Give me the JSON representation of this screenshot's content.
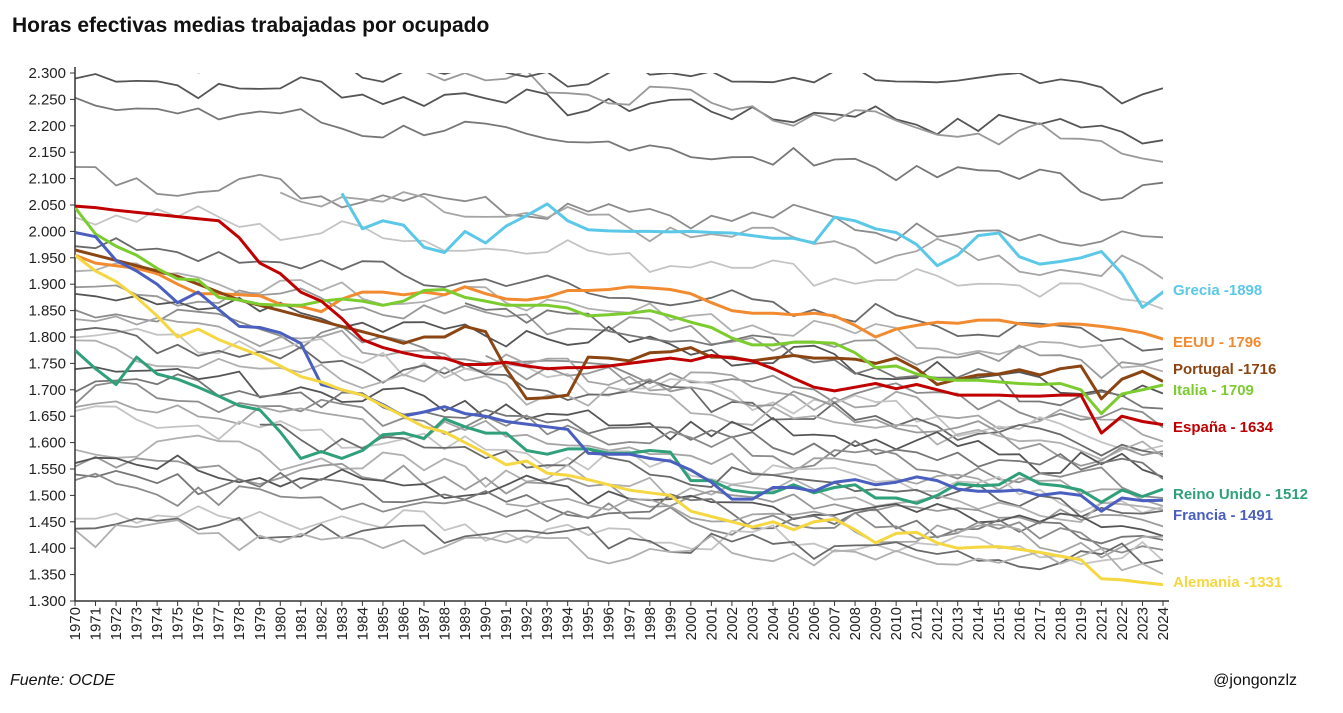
{
  "title": "Horas efectivas medias trabajadas por ocupado",
  "source": "Fuente: OCDE",
  "credit": "@jongonzlz",
  "chart_data": {
    "type": "line",
    "ylim": [
      1300,
      2300
    ],
    "yticks": [
      "1.300",
      "1.350",
      "1.400",
      "1.450",
      "1.500",
      "1.550",
      "1.600",
      "1.650",
      "1.700",
      "1.750",
      "1.800",
      "1.850",
      "1.900",
      "1.950",
      "2.000",
      "2.050",
      "2.100",
      "2.150",
      "2.200",
      "2.250",
      "2.300"
    ],
    "x": [
      "1970",
      "1971",
      "1972",
      "1973",
      "1974",
      "1975",
      "1976",
      "1977",
      "1978",
      "1979",
      "1980",
      "1981",
      "1982",
      "1983",
      "1984",
      "1985",
      "1986",
      "1987",
      "1988",
      "1989",
      "1990",
      "1991",
      "1992",
      "1993",
      "1994",
      "1995",
      "1996",
      "1997",
      "1998",
      "1999",
      "2000",
      "2001",
      "2002",
      "2003",
      "2004",
      "2005",
      "2006",
      "2007",
      "2008",
      "2009",
      "2010",
      "2011",
      "2012",
      "2013",
      "2014",
      "2015",
      "2016",
      "2017",
      "2018",
      "2019",
      "2021",
      "2022",
      "2023",
      "2024"
    ],
    "highlight": [
      {
        "label": "Grecia -1898",
        "color": "#5bc8e8",
        "start": 13,
        "values": [
          2072,
          2005,
          2020,
          2012,
          1970,
          1960,
          2000,
          1978,
          2010,
          2030,
          2052,
          2020,
          2003,
          2001,
          2000,
          2000,
          1999,
          2000,
          1998,
          1997,
          1992,
          1987,
          1987,
          1978,
          2027,
          2020,
          2005,
          1998,
          1975,
          1935,
          1955,
          1992,
          1997,
          1952,
          1938,
          1943,
          1950,
          1962,
          1920,
          1856,
          1885,
          1895,
          1898
        ]
      },
      {
        "label": "EEUU - 1796",
        "color": "#f28a30",
        "start": 0,
        "values": [
          1955,
          1940,
          1935,
          1930,
          1920,
          1900,
          1882,
          1882,
          1880,
          1878,
          1862,
          1858,
          1848,
          1872,
          1885,
          1885,
          1880,
          1885,
          1880,
          1895,
          1882,
          1872,
          1870,
          1876,
          1888,
          1888,
          1890,
          1895,
          1893,
          1890,
          1882,
          1865,
          1850,
          1845,
          1845,
          1842,
          1845,
          1840,
          1822,
          1800,
          1815,
          1822,
          1828,
          1826,
          1832,
          1832,
          1825,
          1820,
          1825,
          1824,
          1820,
          1815,
          1808,
          1796
        ]
      },
      {
        "label": "Portugal -1716",
        "color": "#8b4513",
        "start": 0,
        "values": [
          1965,
          1955,
          1945,
          1935,
          1925,
          1915,
          1900,
          1885,
          1870,
          1860,
          1850,
          1840,
          1830,
          1820,
          1810,
          1800,
          1788,
          1800,
          1800,
          1820,
          1810,
          1740,
          1683,
          1685,
          1690,
          1762,
          1760,
          1755,
          1770,
          1772,
          1780,
          1762,
          1762,
          1755,
          1760,
          1765,
          1760,
          1760,
          1758,
          1750,
          1760,
          1740,
          1710,
          1720,
          1728,
          1730,
          1738,
          1728,
          1740,
          1745,
          1683,
          1720,
          1735,
          1716
        ]
      },
      {
        "label": "Italia - 1709",
        "color": "#7ccc30",
        "start": 0,
        "values": [
          2045,
          1995,
          1972,
          1955,
          1930,
          1910,
          1908,
          1875,
          1870,
          1862,
          1860,
          1860,
          1868,
          1872,
          1868,
          1860,
          1868,
          1888,
          1890,
          1875,
          1868,
          1860,
          1860,
          1860,
          1855,
          1840,
          1842,
          1845,
          1850,
          1840,
          1828,
          1818,
          1798,
          1785,
          1785,
          1790,
          1790,
          1788,
          1770,
          1742,
          1745,
          1730,
          1720,
          1718,
          1718,
          1715,
          1712,
          1710,
          1712,
          1700,
          1655,
          1692,
          1700,
          1709
        ]
      },
      {
        "label": "España - 1634",
        "color": "#c00000",
        "start": 0,
        "values": [
          2048,
          2045,
          2040,
          2036,
          2032,
          2028,
          2024,
          2020,
          1988,
          1940,
          1920,
          1885,
          1868,
          1835,
          1795,
          1780,
          1770,
          1762,
          1760,
          1748,
          1748,
          1752,
          1745,
          1740,
          1742,
          1742,
          1745,
          1750,
          1755,
          1760,
          1755,
          1765,
          1760,
          1755,
          1740,
          1722,
          1705,
          1698,
          1705,
          1712,
          1702,
          1710,
          1700,
          1690,
          1690,
          1690,
          1688,
          1688,
          1690,
          1690,
          1618,
          1650,
          1640,
          1634
        ]
      },
      {
        "label": "Reino Unido - 1512",
        "color": "#2fa07a",
        "start": 0,
        "values": [
          1775,
          1740,
          1710,
          1762,
          1730,
          1720,
          1705,
          1688,
          1670,
          1662,
          1620,
          1570,
          1583,
          1570,
          1585,
          1615,
          1618,
          1608,
          1645,
          1630,
          1618,
          1618,
          1585,
          1578,
          1588,
          1588,
          1580,
          1580,
          1585,
          1582,
          1528,
          1528,
          1510,
          1505,
          1505,
          1520,
          1505,
          1515,
          1520,
          1495,
          1495,
          1485,
          1500,
          1522,
          1518,
          1520,
          1542,
          1522,
          1518,
          1510,
          1487,
          1510,
          1498,
          1512
        ]
      },
      {
        "label": "Francia - 1491",
        "color": "#4a5fbf",
        "start": 0,
        "values": [
          1998,
          1990,
          1945,
          1925,
          1900,
          1865,
          1885,
          1852,
          1820,
          1818,
          1808,
          1788,
          1710,
          1700,
          1690,
          1672,
          1650,
          1658,
          1668,
          1655,
          1650,
          1640,
          1635,
          1630,
          1625,
          1580,
          1578,
          1578,
          1570,
          1565,
          1548,
          1525,
          1493,
          1493,
          1515,
          1515,
          1508,
          1525,
          1530,
          1520,
          1525,
          1535,
          1528,
          1512,
          1508,
          1508,
          1510,
          1500,
          1505,
          1500,
          1470,
          1495,
          1490,
          1491
        ]
      },
      {
        "label": "Alemania -1331",
        "color": "#f5d742",
        "start": 0,
        "values": [
          1955,
          1925,
          1905,
          1875,
          1840,
          1800,
          1815,
          1795,
          1780,
          1765,
          1745,
          1725,
          1715,
          1700,
          1690,
          1670,
          1650,
          1630,
          1620,
          1600,
          1580,
          1558,
          1565,
          1542,
          1538,
          1530,
          1520,
          1510,
          1505,
          1500,
          1470,
          1460,
          1450,
          1440,
          1450,
          1435,
          1450,
          1455,
          1435,
          1410,
          1428,
          1430,
          1410,
          1400,
          1402,
          1403,
          1398,
          1392,
          1385,
          1378,
          1342,
          1340,
          1335,
          1331
        ]
      }
    ]
  }
}
